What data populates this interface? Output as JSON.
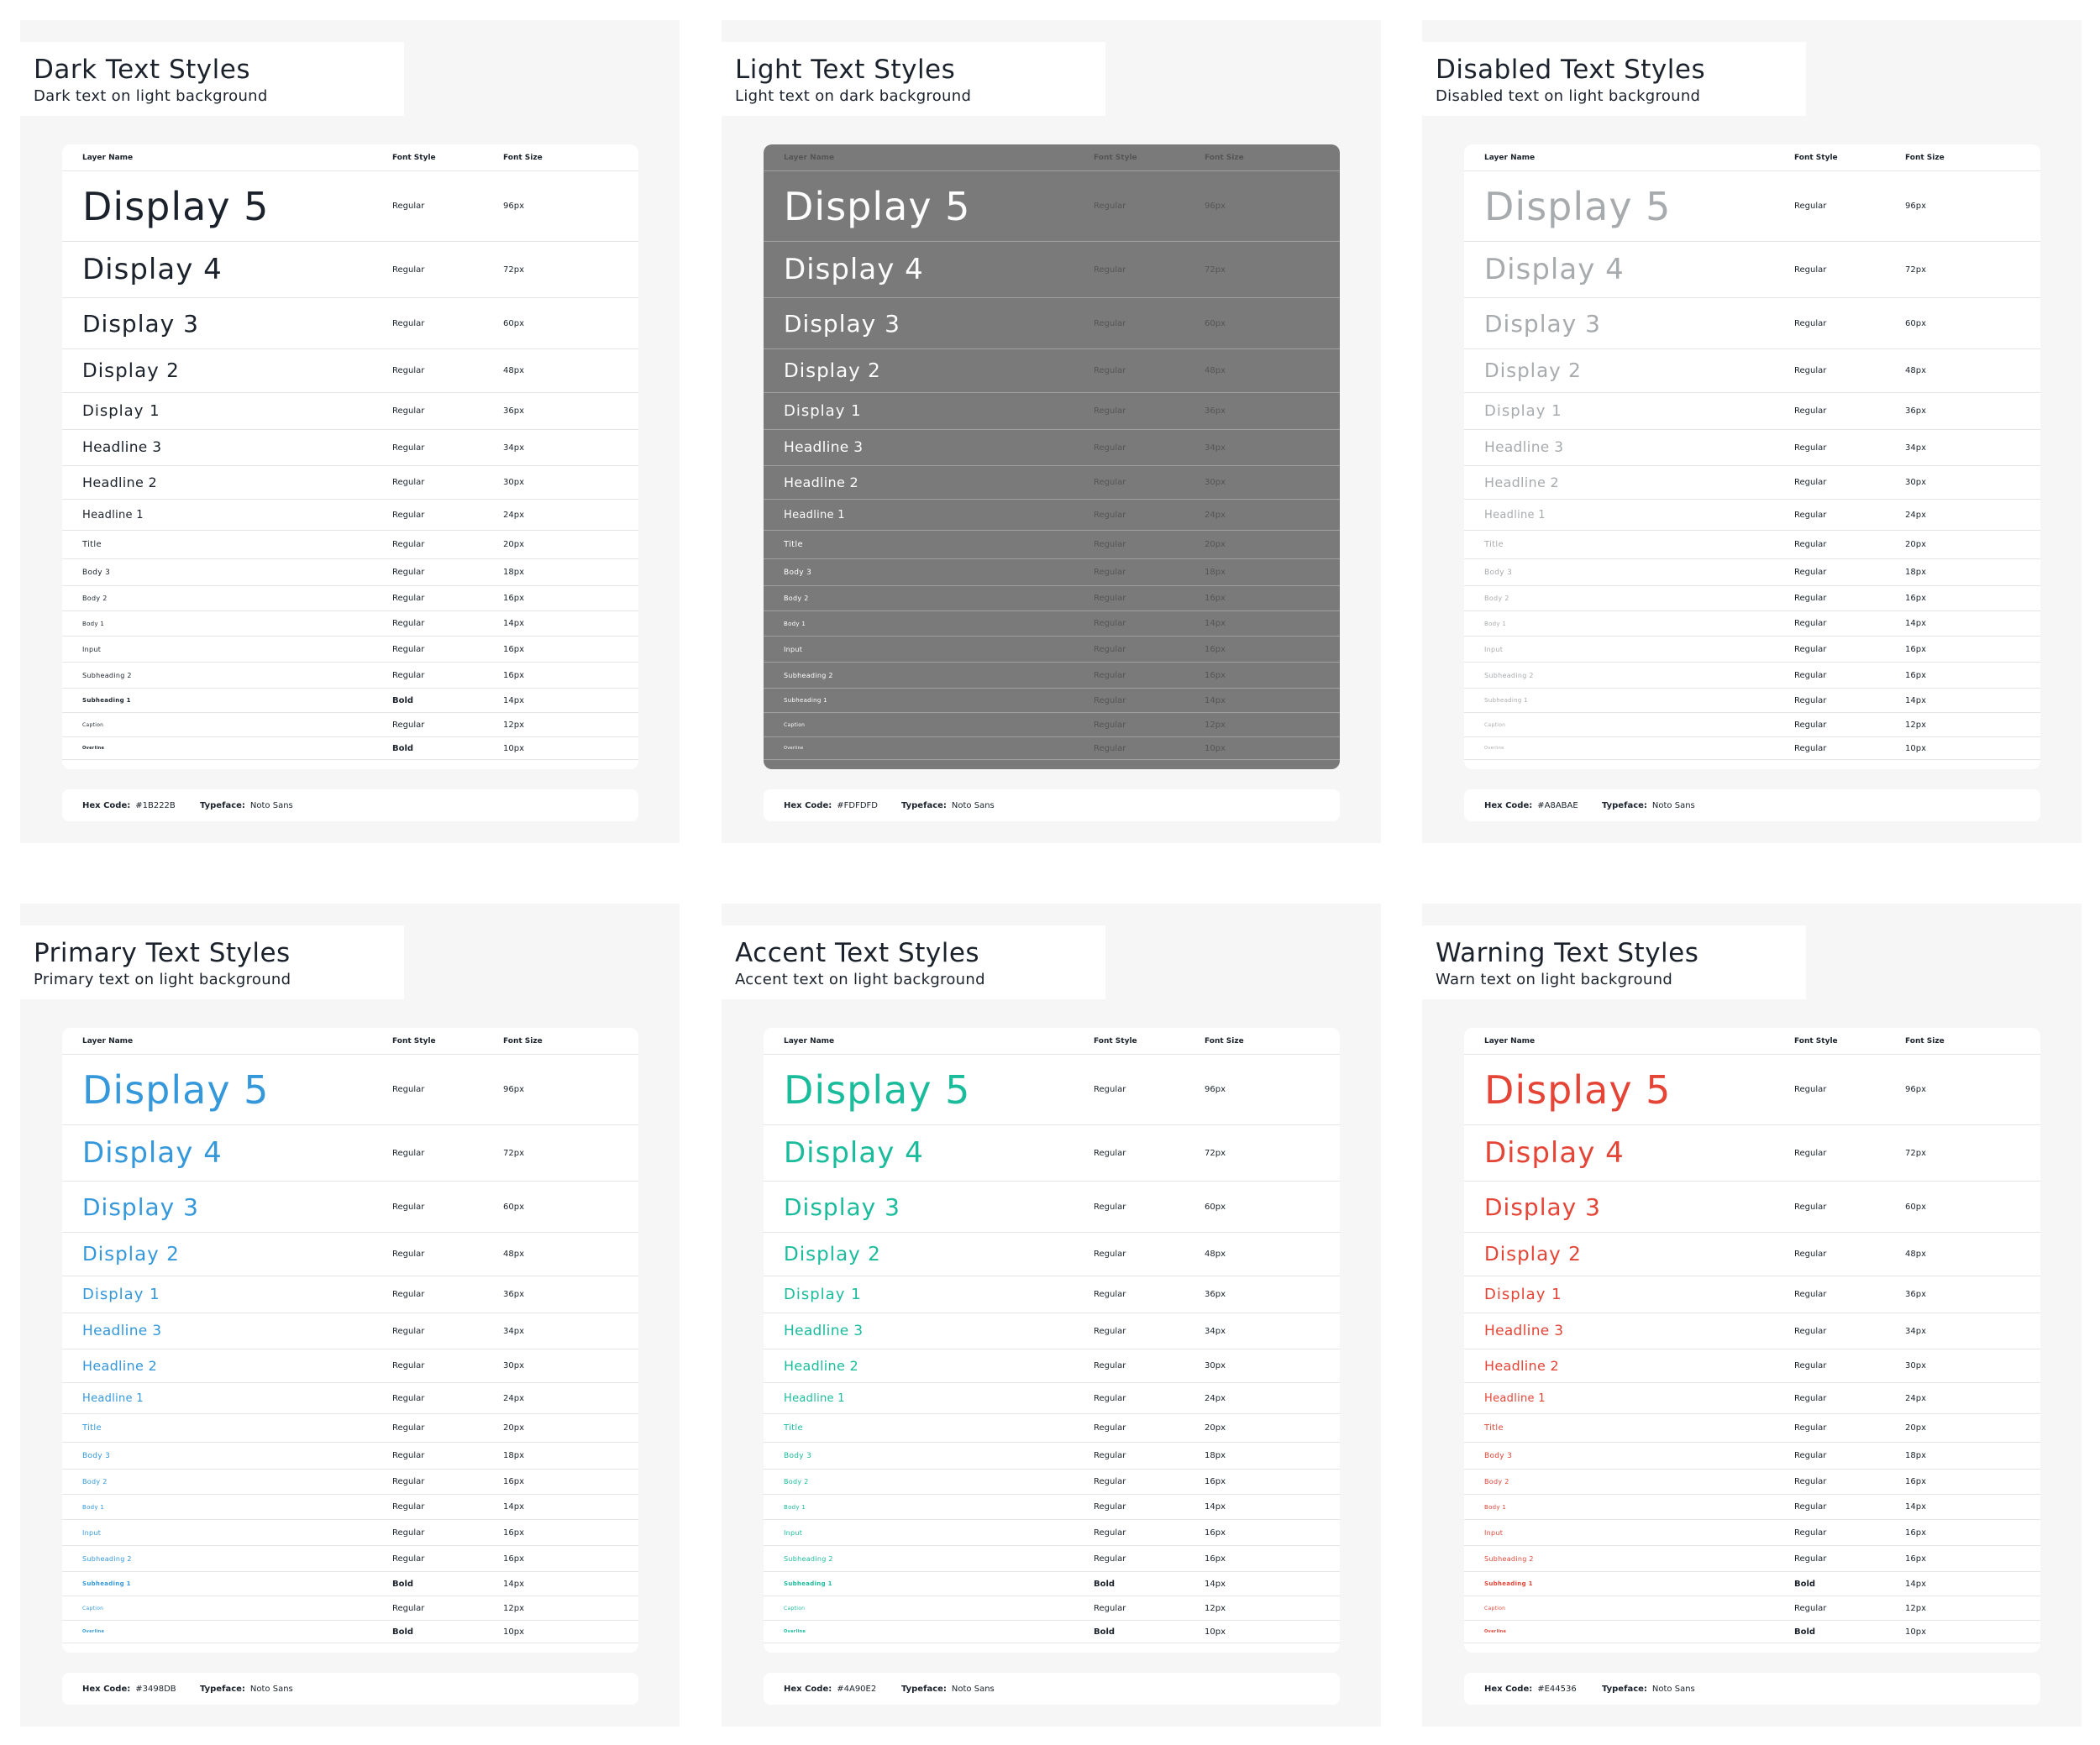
{
  "labels": {
    "layer_name": "Layer Name",
    "font_style": "Font Style",
    "font_size": "Font Size",
    "hex_code": "Hex Code:",
    "typeface": "Typeface:"
  },
  "panels": [
    {
      "title": "Dark Text Styles",
      "subtitle": "Dark text on light background",
      "color": "#1B222B",
      "hex": "#1B222B",
      "typeface": "Noto Sans",
      "rows": [
        {
          "name": "Display 5",
          "style": "Regular",
          "size": "96px"
        },
        {
          "name": "Display 4",
          "style": "Regular",
          "size": "72px"
        },
        {
          "name": "Display 3",
          "style": "Regular",
          "size": "60px"
        },
        {
          "name": "Display 2",
          "style": "Regular",
          "size": "48px"
        },
        {
          "name": "Display 1",
          "style": "Regular",
          "size": "36px"
        },
        {
          "name": "Headline 3",
          "style": "Regular",
          "size": "34px"
        },
        {
          "name": "Headline 2",
          "style": "Regular",
          "size": "30px"
        },
        {
          "name": "Headline 1",
          "style": "Regular",
          "size": "24px"
        },
        {
          "name": "Title",
          "style": "Regular",
          "size": "20px"
        },
        {
          "name": "Body 3",
          "style": "Regular",
          "size": "18px"
        },
        {
          "name": "Body 2",
          "style": "Regular",
          "size": "16px"
        },
        {
          "name": "Body 1",
          "style": "Regular",
          "size": "14px"
        },
        {
          "name": "Input",
          "style": "Regular",
          "size": "16px"
        },
        {
          "name": "Subheading 2",
          "style": "Regular",
          "size": "16px"
        },
        {
          "name": "Subheading 1",
          "style": "Bold",
          "size": "14px"
        },
        {
          "name": "Caption",
          "style": "Regular",
          "size": "12px"
        },
        {
          "name": "Overline",
          "style": "Bold",
          "size": "10px"
        }
      ]
    },
    {
      "title": "Light Text Styles",
      "subtitle": "Light text on dark background",
      "color": "#FDFDFD",
      "hex": "#FDFDFD",
      "typeface": "Noto Sans",
      "rows": [
        {
          "name": "Display 5",
          "style": "Regular",
          "size": "96px"
        },
        {
          "name": "Display 4",
          "style": "Regular",
          "size": "72px"
        },
        {
          "name": "Display 3",
          "style": "Regular",
          "size": "60px"
        },
        {
          "name": "Display 2",
          "style": "Regular",
          "size": "48px"
        },
        {
          "name": "Display 1",
          "style": "Regular",
          "size": "36px"
        },
        {
          "name": "Headline 3",
          "style": "Regular",
          "size": "34px"
        },
        {
          "name": "Headline 2",
          "style": "Regular",
          "size": "30px"
        },
        {
          "name": "Headline 1",
          "style": "Regular",
          "size": "24px"
        },
        {
          "name": "Title",
          "style": "Regular",
          "size": "20px"
        },
        {
          "name": "Body 3",
          "style": "Regular",
          "size": "18px"
        },
        {
          "name": "Body 2",
          "style": "Regular",
          "size": "16px"
        },
        {
          "name": "Body 1",
          "style": "Regular",
          "size": "14px"
        },
        {
          "name": "Input",
          "style": "Regular",
          "size": "16px"
        },
        {
          "name": "Subheading 2",
          "style": "Regular",
          "size": "16px"
        },
        {
          "name": "Subheading 1",
          "style": "Regular",
          "size": "14px"
        },
        {
          "name": "Caption",
          "style": "Regular",
          "size": "12px"
        },
        {
          "name": "Overline",
          "style": "Regular",
          "size": "10px"
        }
      ]
    },
    {
      "title": "Disabled Text Styles",
      "subtitle": "Disabled text on light background",
      "color": "#A8ABAE",
      "hex": "#A8ABAE",
      "typeface": "Noto Sans",
      "rows": [
        {
          "name": "Display 5",
          "style": "Regular",
          "size": "96px"
        },
        {
          "name": "Display 4",
          "style": "Regular",
          "size": "72px"
        },
        {
          "name": "Display 3",
          "style": "Regular",
          "size": "60px"
        },
        {
          "name": "Display 2",
          "style": "Regular",
          "size": "48px"
        },
        {
          "name": "Display 1",
          "style": "Regular",
          "size": "36px"
        },
        {
          "name": "Headline 3",
          "style": "Regular",
          "size": "34px"
        },
        {
          "name": "Headline 2",
          "style": "Regular",
          "size": "30px"
        },
        {
          "name": "Headline 1",
          "style": "Regular",
          "size": "24px"
        },
        {
          "name": "Title",
          "style": "Regular",
          "size": "20px"
        },
        {
          "name": "Body 3",
          "style": "Regular",
          "size": "18px"
        },
        {
          "name": "Body 2",
          "style": "Regular",
          "size": "16px"
        },
        {
          "name": "Body 1",
          "style": "Regular",
          "size": "14px"
        },
        {
          "name": "Input",
          "style": "Regular",
          "size": "16px"
        },
        {
          "name": "Subheading 2",
          "style": "Regular",
          "size": "16px"
        },
        {
          "name": "Subheading 1",
          "style": "Regular",
          "size": "14px"
        },
        {
          "name": "Caption",
          "style": "Regular",
          "size": "12px"
        },
        {
          "name": "Overline",
          "style": "Regular",
          "size": "10px"
        }
      ]
    },
    {
      "title": "Primary Text Styles",
      "subtitle": "Primary text on light background",
      "color": "#3498DB",
      "hex": "#3498DB",
      "typeface": "Noto Sans",
      "rows": [
        {
          "name": "Display 5",
          "style": "Regular",
          "size": "96px"
        },
        {
          "name": "Display 4",
          "style": "Regular",
          "size": "72px"
        },
        {
          "name": "Display 3",
          "style": "Regular",
          "size": "60px"
        },
        {
          "name": "Display 2",
          "style": "Regular",
          "size": "48px"
        },
        {
          "name": "Display 1",
          "style": "Regular",
          "size": "36px"
        },
        {
          "name": "Headline 3",
          "style": "Regular",
          "size": "34px"
        },
        {
          "name": "Headline 2",
          "style": "Regular",
          "size": "30px"
        },
        {
          "name": "Headline 1",
          "style": "Regular",
          "size": "24px"
        },
        {
          "name": "Title",
          "style": "Regular",
          "size": "20px"
        },
        {
          "name": "Body 3",
          "style": "Regular",
          "size": "18px"
        },
        {
          "name": "Body 2",
          "style": "Regular",
          "size": "16px"
        },
        {
          "name": "Body 1",
          "style": "Regular",
          "size": "14px"
        },
        {
          "name": "Input",
          "style": "Regular",
          "size": "16px"
        },
        {
          "name": "Subheading 2",
          "style": "Regular",
          "size": "16px"
        },
        {
          "name": "Subheading 1",
          "style": "Bold",
          "size": "14px"
        },
        {
          "name": "Caption",
          "style": "Regular",
          "size": "12px"
        },
        {
          "name": "Overline",
          "style": "Bold",
          "size": "10px"
        }
      ]
    },
    {
      "title": "Accent Text Styles",
      "subtitle": "Accent text on light background",
      "color": "#4A90E2",
      "display_color": "#1ABC9C",
      "hex": "#4A90E2",
      "typeface": "Noto Sans",
      "rows": [
        {
          "name": "Display 5",
          "style": "Regular",
          "size": "96px"
        },
        {
          "name": "Display 4",
          "style": "Regular",
          "size": "72px"
        },
        {
          "name": "Display 3",
          "style": "Regular",
          "size": "60px"
        },
        {
          "name": "Display 2",
          "style": "Regular",
          "size": "48px"
        },
        {
          "name": "Display 1",
          "style": "Regular",
          "size": "36px"
        },
        {
          "name": "Headline 3",
          "style": "Regular",
          "size": "34px"
        },
        {
          "name": "Headline 2",
          "style": "Regular",
          "size": "30px"
        },
        {
          "name": "Headline 1",
          "style": "Regular",
          "size": "24px"
        },
        {
          "name": "Title",
          "style": "Regular",
          "size": "20px"
        },
        {
          "name": "Body 3",
          "style": "Regular",
          "size": "18px"
        },
        {
          "name": "Body 2",
          "style": "Regular",
          "size": "16px"
        },
        {
          "name": "Body 1",
          "style": "Regular",
          "size": "14px"
        },
        {
          "name": "Input",
          "style": "Regular",
          "size": "16px"
        },
        {
          "name": "Subheading 2",
          "style": "Regular",
          "size": "16px"
        },
        {
          "name": "Subheading 1",
          "style": "Bold",
          "size": "14px"
        },
        {
          "name": "Caption",
          "style": "Regular",
          "size": "12px"
        },
        {
          "name": "Overline",
          "style": "Bold",
          "size": "10px"
        }
      ]
    },
    {
      "title": "Warning Text Styles",
      "subtitle": "Warn text on light background",
      "color": "#E44536",
      "hex": "#E44536",
      "typeface": "Noto Sans",
      "rows": [
        {
          "name": "Display 5",
          "style": "Regular",
          "size": "96px"
        },
        {
          "name": "Display 4",
          "style": "Regular",
          "size": "72px"
        },
        {
          "name": "Display 3",
          "style": "Regular",
          "size": "60px"
        },
        {
          "name": "Display 2",
          "style": "Regular",
          "size": "48px"
        },
        {
          "name": "Display 1",
          "style": "Regular",
          "size": "36px"
        },
        {
          "name": "Headline 3",
          "style": "Regular",
          "size": "34px"
        },
        {
          "name": "Headline 2",
          "style": "Regular",
          "size": "30px"
        },
        {
          "name": "Headline 1",
          "style": "Regular",
          "size": "24px"
        },
        {
          "name": "Title",
          "style": "Regular",
          "size": "20px"
        },
        {
          "name": "Body 3",
          "style": "Regular",
          "size": "18px"
        },
        {
          "name": "Body 2",
          "style": "Regular",
          "size": "16px"
        },
        {
          "name": "Body 1",
          "style": "Regular",
          "size": "14px"
        },
        {
          "name": "Input",
          "style": "Regular",
          "size": "16px"
        },
        {
          "name": "Subheading 2",
          "style": "Regular",
          "size": "16px"
        },
        {
          "name": "Subheading 1",
          "style": "Bold",
          "size": "14px"
        },
        {
          "name": "Caption",
          "style": "Regular",
          "size": "12px"
        },
        {
          "name": "Overline",
          "style": "Bold",
          "size": "10px"
        }
      ]
    }
  ]
}
